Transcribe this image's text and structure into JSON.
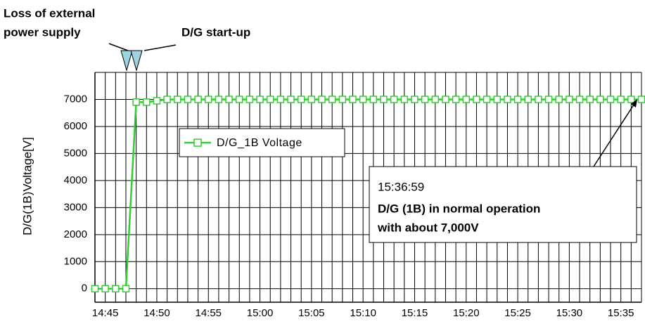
{
  "chart_data": {
    "type": "line",
    "ylabel": "D/G(1B)Voltage[V]",
    "x": [
      "14:44",
      "14:45",
      "14:46",
      "14:47",
      "14:48",
      "14:49",
      "14:50",
      "14:51",
      "14:52",
      "14:53",
      "14:54",
      "14:55",
      "14:56",
      "14:57",
      "14:58",
      "14:59",
      "15:00",
      "15:01",
      "15:02",
      "15:03",
      "15:04",
      "15:05",
      "15:06",
      "15:07",
      "15:08",
      "15:09",
      "15:10",
      "15:11",
      "15:12",
      "15:13",
      "15:14",
      "15:15",
      "15:16",
      "15:17",
      "15:18",
      "15:19",
      "15:20",
      "15:21",
      "15:22",
      "15:23",
      "15:24",
      "15:25",
      "15:26",
      "15:27",
      "15:28",
      "15:29",
      "15:30",
      "15:31",
      "15:32",
      "15:33",
      "15:34",
      "15:35",
      "15:36",
      "15:37"
    ],
    "series": [
      {
        "name": "D/G_1B Voltage",
        "color": "#33cc33",
        "values": [
          0,
          0,
          0,
          0,
          6900,
          6900,
          6950,
          7000,
          7000,
          7000,
          7000,
          7000,
          7000,
          7000,
          7000,
          7000,
          7000,
          7000,
          7000,
          7000,
          7000,
          7000,
          7000,
          7000,
          7000,
          7000,
          7000,
          7000,
          7000,
          7000,
          7000,
          7000,
          7000,
          7000,
          7000,
          7000,
          7000,
          7000,
          7000,
          7000,
          7000,
          7000,
          7000,
          7000,
          7000,
          7000,
          7000,
          7000,
          7000,
          7000,
          7000,
          7000,
          7000,
          7000
        ]
      }
    ],
    "xlim": [
      "14:44",
      "15:37"
    ],
    "xticks": [
      "14:45",
      "14:50",
      "14:55",
      "15:00",
      "15:05",
      "15:10",
      "15:15",
      "15:20",
      "15:25",
      "15:30",
      "15:35"
    ],
    "x_minor_grid_minutes": 1,
    "ylim": [
      -500,
      8000
    ],
    "yticks": [
      0,
      1000,
      2000,
      3000,
      4000,
      5000,
      6000,
      7000
    ],
    "grid": true,
    "annotations": {
      "loss": [
        "Loss of external",
        "power supply"
      ],
      "startup": "D/G start-up",
      "box_time": "15:36:59",
      "box_text": [
        "D/G (1B) in normal operation",
        "with about 7,000V"
      ]
    }
  }
}
